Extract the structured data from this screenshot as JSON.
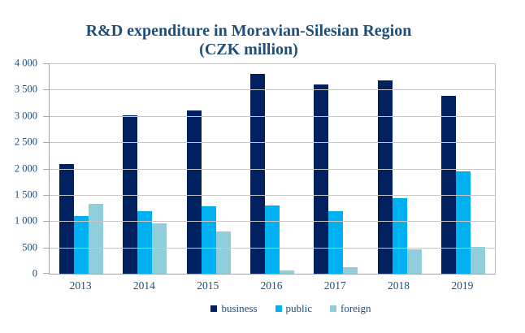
{
  "chart": {
    "title_line1": "R&D expenditure in Moravian-Silesian Region",
    "title_line2": "(CZK million)"
  },
  "chart_data": {
    "type": "bar",
    "title": "R&D expenditure in Moravian-Silesian Region (CZK million)",
    "categories": [
      "2013",
      "2014",
      "2015",
      "2016",
      "2017",
      "2018",
      "2019"
    ],
    "series": [
      {
        "name": "business",
        "color": "#002060",
        "values": [
          2080,
          3010,
          3100,
          3800,
          3600,
          3680,
          3380
        ]
      },
      {
        "name": "public",
        "color": "#00B0F0",
        "values": [
          1100,
          1190,
          1280,
          1290,
          1190,
          1440,
          1950
        ]
      },
      {
        "name": "foreign",
        "color": "#92CDDC",
        "values": [
          1330,
          960,
          800,
          60,
          130,
          470,
          510
        ]
      }
    ],
    "xlabel": "",
    "ylabel": "",
    "ylim": [
      0,
      4000
    ],
    "ytick_step": 500,
    "ytick_labels": [
      "0",
      "500",
      "1 000",
      "1 500",
      "2 000",
      "2 500",
      "3 000",
      "3 500",
      "4 000"
    ],
    "grid": true,
    "legend_position": "bottom"
  },
  "palette": {
    "title_text": "#1F4E79",
    "axis_text": "#1F4E79",
    "gridline": "#C8C8C8",
    "axis_line": "#A6A6A6",
    "background": "#FFFFFF"
  }
}
